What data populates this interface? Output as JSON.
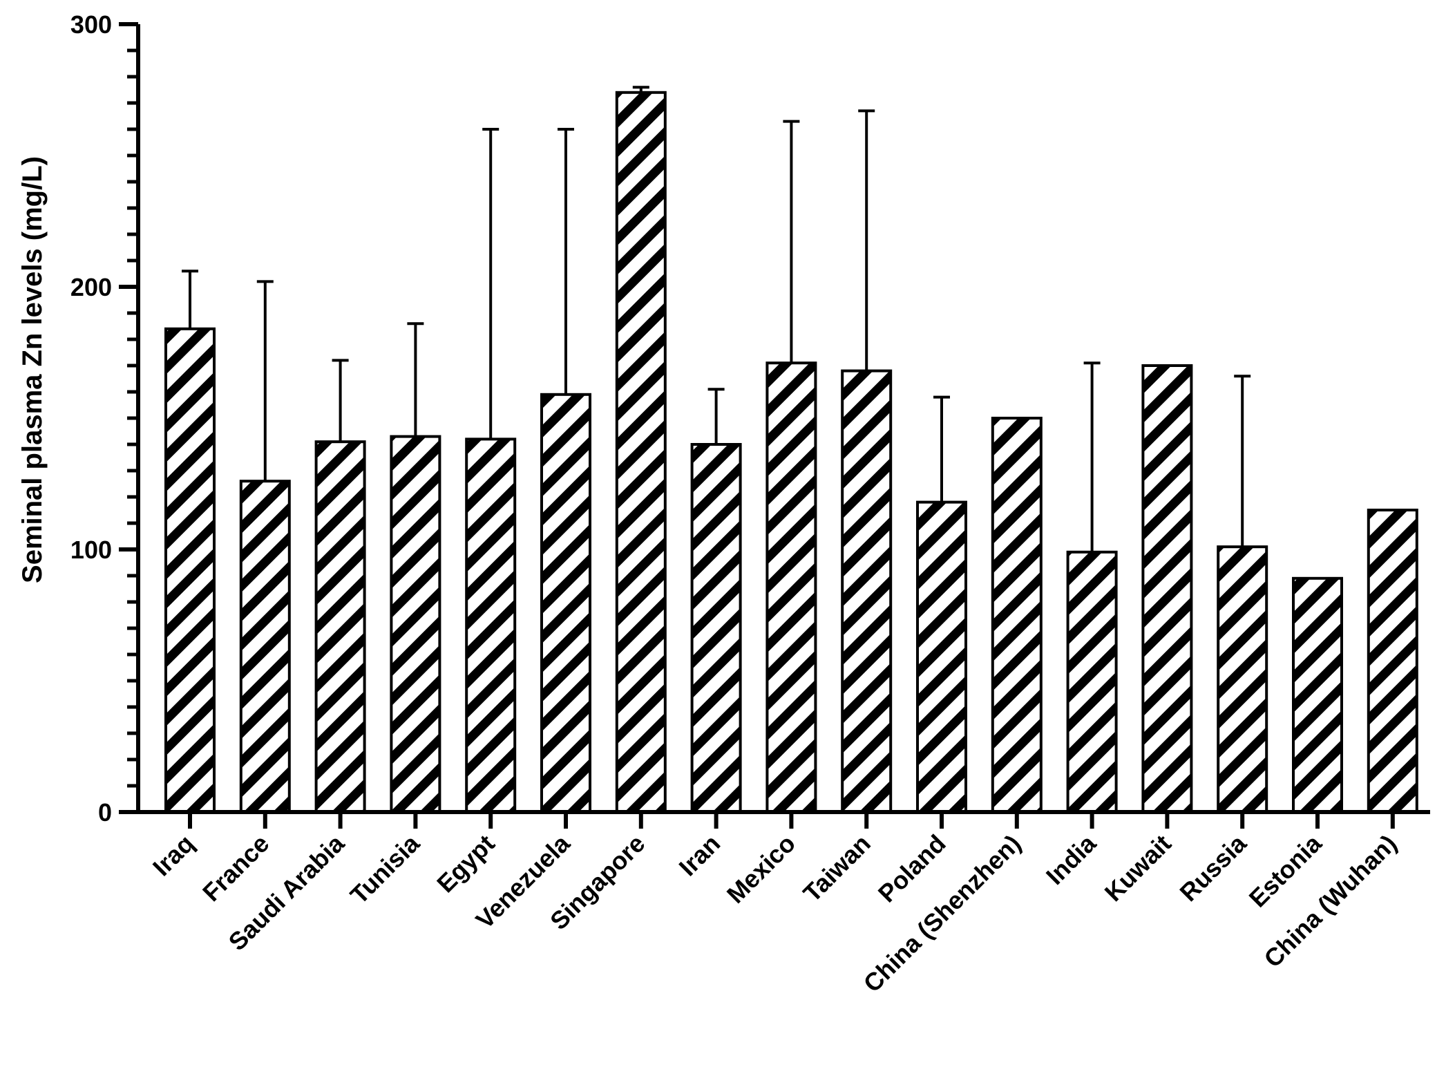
{
  "chart_data": {
    "type": "bar",
    "title": "",
    "xlabel": "",
    "ylabel": "Seminal plasma Zn levels (mg/L)",
    "ylim": [
      0,
      300
    ],
    "yticks": [
      0,
      100,
      200,
      300
    ],
    "grid": false,
    "fill_pattern": "diagonal-hatch",
    "colors": {
      "bar_fill": "#ffffff",
      "hatch": "#000000",
      "axis": "#000000"
    },
    "categories": [
      "Iraq",
      "France",
      "Saudi Arabia",
      "Tunisia",
      "Egypt",
      "Venezuela",
      "Singapore",
      "Iran",
      "Mexico",
      "Taiwan",
      "Poland",
      "China (Shenzhen)",
      "India",
      "Kuwait",
      "Russia",
      "Estonia",
      "China (Wuhan)"
    ],
    "values": [
      184,
      126,
      141,
      143,
      142,
      159,
      274,
      140,
      171,
      168,
      118,
      150,
      99,
      170,
      101,
      89,
      115
    ],
    "error_upper": [
      206,
      202,
      172,
      186,
      260,
      260,
      276,
      161,
      263,
      267,
      158,
      null,
      171,
      null,
      166,
      null,
      null
    ]
  }
}
